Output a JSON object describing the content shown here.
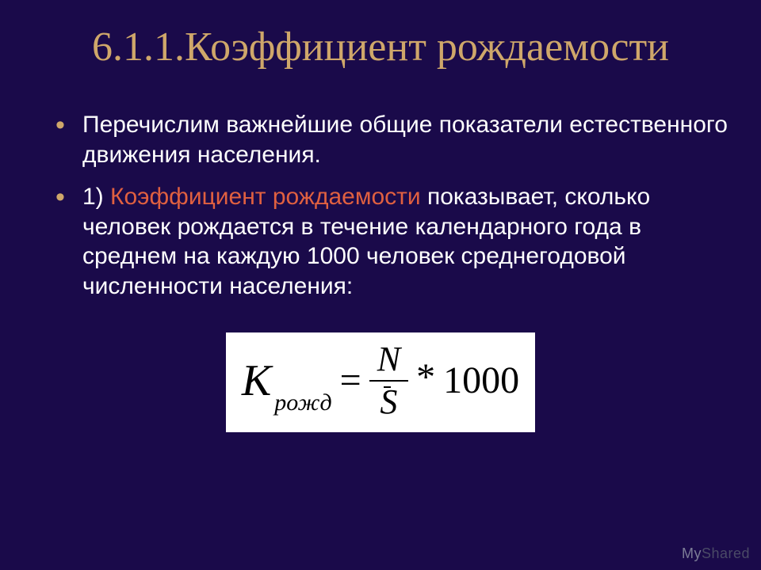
{
  "slide": {
    "title": "6.1.1.Коэффициент рождаемости",
    "title_color": "#cfa76a",
    "bullets": [
      {
        "text": "Перечислим важнейшие общие показатели естественного движения населения."
      },
      {
        "lead_number": "1) ",
        "accent": "Коэффициент рождаемости",
        "rest": " показывает, сколько человек рождается в течение календарного года в среднем на каждую 1000 человек  среднегодовой численности населения:"
      }
    ]
  },
  "formula": {
    "lhs_symbol": "K",
    "lhs_sub": "рожд",
    "equals": "=",
    "numerator": "N",
    "denominator": "S",
    "denominator_overline": true,
    "multiply": "*",
    "constant": "1000",
    "background": "#ffffff",
    "text_color": "#000000"
  },
  "colors": {
    "background": "#1a0a4a",
    "body_text": "#ffffff",
    "accent_text": "#e06040",
    "bullet_marker": "#cfa76a"
  },
  "watermark": {
    "part1": "My",
    "part2": "Shared"
  }
}
